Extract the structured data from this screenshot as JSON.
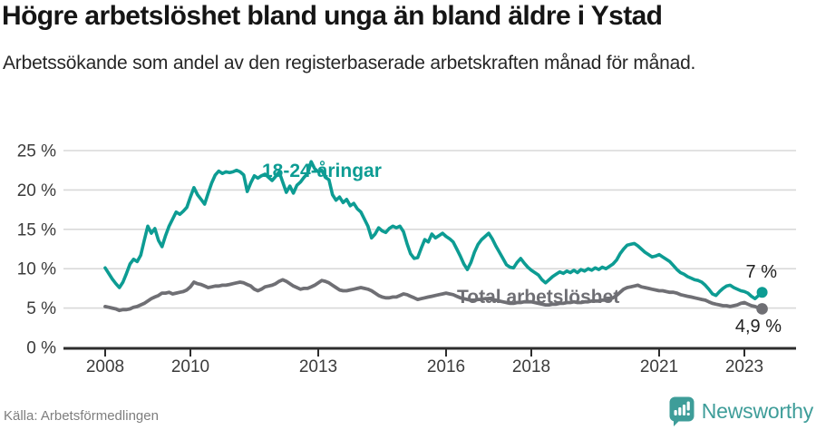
{
  "footer": {
    "brand": "Newsworthy",
    "brand_color": "#3e9d99"
  },
  "chart_data": {
    "type": "line",
    "title": "Högre arbetslöshet bland unga än bland äldre i Ystad",
    "subtitle": "Arbetssökande som andel av den registerbaserade arbetskraften månad för månad.",
    "source": "Källa: Arbetsförmedlingen",
    "grid": "horizontal",
    "legend_position": "inline-labels",
    "x_axis": {
      "ticks": [
        2008,
        2010,
        2013,
        2016,
        2018,
        2021,
        2023
      ],
      "tick_labels": [
        "2008",
        "2010",
        "2013",
        "2016",
        "2018",
        "2021",
        "2023"
      ],
      "range": [
        2007.0,
        2024.2
      ]
    },
    "y_axis": {
      "ticks": [
        0,
        5,
        10,
        15,
        20,
        25
      ],
      "tick_labels": [
        "0 %",
        "5 %",
        "10 %",
        "15 %",
        "20 %",
        "25 %"
      ],
      "range": [
        0,
        25
      ]
    },
    "x_start_year": 2008.0,
    "x_step_years": 0.0833,
    "series": [
      {
        "id": "youth",
        "name": "18-24-åringar",
        "color": "#0d9c93",
        "end_value": 7.0,
        "end_label": "7 %",
        "values": [
          10.1,
          9.4,
          8.7,
          8.1,
          7.6,
          8.3,
          9.4,
          10.6,
          11.2,
          10.9,
          11.7,
          13.6,
          15.4,
          14.5,
          15.1,
          13.6,
          12.8,
          14.2,
          15.4,
          16.3,
          17.2,
          16.9,
          17.3,
          17.8,
          19.1,
          20.3,
          19.4,
          18.8,
          18.2,
          19.6,
          20.9,
          21.9,
          22.4,
          22.1,
          22.3,
          22.2,
          22.3,
          22.5,
          22.3,
          21.9,
          19.8,
          20.9,
          21.8,
          21.5,
          21.8,
          22.0,
          21.6,
          21.2,
          21.7,
          22.3,
          21.0,
          19.7,
          20.5,
          19.6,
          20.6,
          21.0,
          21.6,
          22.1,
          23.6,
          22.7,
          22.3,
          22.5,
          21.6,
          21.3,
          19.4,
          18.7,
          19.1,
          18.4,
          18.8,
          18.0,
          18.3,
          17.6,
          17.2,
          16.3,
          15.4,
          13.9,
          14.4,
          15.2,
          14.8,
          14.6,
          15.1,
          15.4,
          15.2,
          15.4,
          14.7,
          13.2,
          11.9,
          11.3,
          11.4,
          12.6,
          13.7,
          13.4,
          14.4,
          13.9,
          14.2,
          14.5,
          14.1,
          13.8,
          13.4,
          12.5,
          11.6,
          10.6,
          9.9,
          10.8,
          12.1,
          13.1,
          13.7,
          14.1,
          14.5,
          13.8,
          12.9,
          12.1,
          11.3,
          10.5,
          10.2,
          10.1,
          10.8,
          11.3,
          10.7,
          10.2,
          9.8,
          9.5,
          9.2,
          8.6,
          8.2,
          8.6,
          9.0,
          9.3,
          9.6,
          9.4,
          9.7,
          9.5,
          9.8,
          9.5,
          9.9,
          9.7,
          10.0,
          9.8,
          10.1,
          9.9,
          10.2,
          10.0,
          10.3,
          10.6,
          11.1,
          11.9,
          12.5,
          13.0,
          13.1,
          13.2,
          12.9,
          12.5,
          12.1,
          11.8,
          11.5,
          11.6,
          11.8,
          11.5,
          11.2,
          10.9,
          10.4,
          9.9,
          9.5,
          9.3,
          9.0,
          8.8,
          8.6,
          8.5,
          8.3,
          7.9,
          7.4,
          6.8,
          6.6,
          7.1,
          7.5,
          7.8,
          7.9,
          7.6,
          7.4,
          7.2,
          7.1,
          6.9,
          6.5,
          6.2,
          6.6,
          7.0
        ]
      },
      {
        "id": "total",
        "name": "Total arbetslöshet",
        "color": "#6f6f74",
        "end_value": 4.9,
        "end_label": "4,9 %",
        "values": [
          5.2,
          5.1,
          5.0,
          4.9,
          4.7,
          4.8,
          4.8,
          4.9,
          5.1,
          5.2,
          5.4,
          5.6,
          5.9,
          6.2,
          6.4,
          6.6,
          6.9,
          6.9,
          7.0,
          6.8,
          6.9,
          7.0,
          7.1,
          7.3,
          7.7,
          8.3,
          8.1,
          8.0,
          7.8,
          7.6,
          7.7,
          7.8,
          7.8,
          7.9,
          7.9,
          8.0,
          8.1,
          8.2,
          8.3,
          8.2,
          8.0,
          7.8,
          7.4,
          7.2,
          7.4,
          7.7,
          7.8,
          7.9,
          8.1,
          8.4,
          8.6,
          8.4,
          8.1,
          7.8,
          7.6,
          7.4,
          7.5,
          7.5,
          7.7,
          7.9,
          8.2,
          8.5,
          8.4,
          8.2,
          7.9,
          7.6,
          7.3,
          7.2,
          7.2,
          7.3,
          7.4,
          7.5,
          7.6,
          7.5,
          7.4,
          7.2,
          6.9,
          6.6,
          6.4,
          6.3,
          6.3,
          6.4,
          6.4,
          6.6,
          6.8,
          6.7,
          6.5,
          6.3,
          6.1,
          6.2,
          6.3,
          6.4,
          6.5,
          6.6,
          6.7,
          6.8,
          6.9,
          6.8,
          6.7,
          6.5,
          6.3,
          6.2,
          6.1,
          6.0,
          6.0,
          6.1,
          6.1,
          6.2,
          6.2,
          6.1,
          6.0,
          5.9,
          5.8,
          5.7,
          5.6,
          5.6,
          5.7,
          5.7,
          5.8,
          5.8,
          5.8,
          5.7,
          5.6,
          5.5,
          5.4,
          5.4,
          5.5,
          5.5,
          5.6,
          5.6,
          5.7,
          5.7,
          5.8,
          5.7,
          5.7,
          5.8,
          5.8,
          5.9,
          5.9,
          5.9,
          6.0,
          6.0,
          6.1,
          6.3,
          6.6,
          7.0,
          7.4,
          7.6,
          7.7,
          7.8,
          7.9,
          7.7,
          7.6,
          7.5,
          7.4,
          7.3,
          7.2,
          7.2,
          7.1,
          7.0,
          7.0,
          6.9,
          6.7,
          6.6,
          6.5,
          6.4,
          6.3,
          6.2,
          6.1,
          6.0,
          5.8,
          5.6,
          5.5,
          5.4,
          5.3,
          5.3,
          5.2,
          5.3,
          5.4,
          5.6,
          5.7,
          5.5,
          5.3,
          5.2,
          5.0,
          4.9
        ]
      }
    ]
  }
}
